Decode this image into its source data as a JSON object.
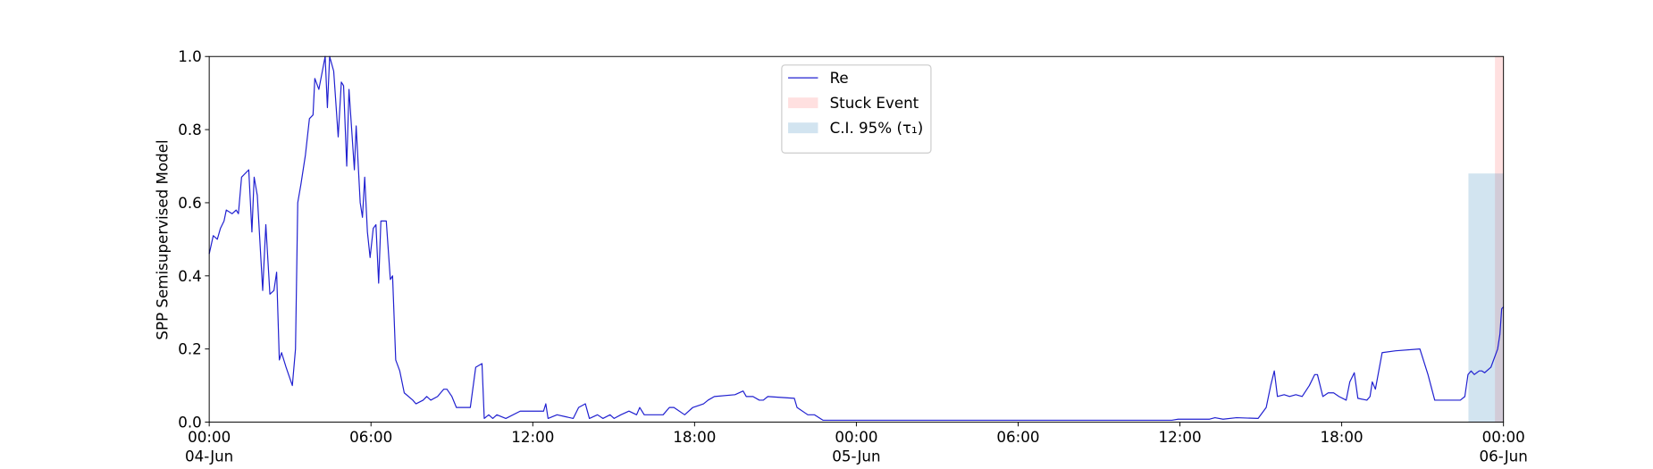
{
  "chart_data": {
    "type": "line",
    "ylabel": "SPP Semisupervised Model",
    "xlim": [
      "1900-06-04T00:00",
      "1900-06-06T00:00"
    ],
    "xticks": [
      {
        "value": "1900-06-04T00:00",
        "label": "00:00\n04-Jun\n1900"
      },
      {
        "value": "1900-06-04T06:00",
        "label": "06:00"
      },
      {
        "value": "1900-06-04T12:00",
        "label": "12:00"
      },
      {
        "value": "1900-06-04T18:00",
        "label": "18:00"
      },
      {
        "value": "1900-06-05T00:00",
        "label": "00:00\n05-Jun"
      },
      {
        "value": "1900-06-05T06:00",
        "label": "06:00"
      },
      {
        "value": "1900-06-05T12:00",
        "label": "12:00"
      },
      {
        "value": "1900-06-05T18:00",
        "label": "18:00"
      },
      {
        "value": "1900-06-06T00:00",
        "label": "00:00\n06-Jun"
      }
    ],
    "ylim": [
      0,
      1
    ],
    "yticks": [
      {
        "value": 0,
        "label": "0.0"
      },
      {
        "value": 0.2,
        "label": "0.2"
      },
      {
        "value": 0.4,
        "label": "0.4"
      },
      {
        "value": 0.6,
        "label": "0.6"
      },
      {
        "value": 0.8,
        "label": "0.8"
      },
      {
        "value": 1,
        "label": "1.0"
      }
    ],
    "legend": "upper center",
    "x": [
      "1900-06-04T00:00",
      "1900-06-04T00:09",
      "1900-06-04T00:18",
      "1900-06-04T00:25",
      "1900-06-04T00:33",
      "1900-06-04T00:38",
      "1900-06-04T00:51",
      "1900-06-04T01:00",
      "1900-06-04T01:05",
      "1900-06-04T01:12",
      "1900-06-04T01:28",
      "1900-06-04T01:35",
      "1900-06-04T01:40",
      "1900-06-04T01:47",
      "1900-06-04T01:59",
      "1900-06-04T02:06",
      "1900-06-04T02:15",
      "1900-06-04T02:24",
      "1900-06-04T02:30",
      "1900-06-04T02:36",
      "1900-06-04T02:41",
      "1900-06-04T02:51",
      "1900-06-04T03:05",
      "1900-06-04T03:12",
      "1900-06-04T03:17",
      "1900-06-04T03:24",
      "1900-06-04T03:34",
      "1900-06-04T03:43",
      "1900-06-04T03:51",
      "1900-06-04T03:55",
      "1900-06-04T04:04",
      "1900-06-04T04:18",
      "1900-06-04T04:23",
      "1900-06-04T04:28",
      "1900-06-04T04:37",
      "1900-06-04T04:47",
      "1900-06-04T04:54",
      "1900-06-04T04:59",
      "1900-06-04T05:06",
      "1900-06-04T05:11",
      "1900-06-04T05:23",
      "1900-06-04T05:27",
      "1900-06-04T05:36",
      "1900-06-04T05:41",
      "1900-06-04T05:46",
      "1900-06-04T05:52",
      "1900-06-04T05:58",
      "1900-06-04T06:05",
      "1900-06-04T06:11",
      "1900-06-04T06:17",
      "1900-06-04T06:22",
      "1900-06-04T06:34",
      "1900-06-04T06:43",
      "1900-06-04T06:48",
      "1900-06-04T06:55",
      "1900-06-04T07:04",
      "1900-06-04T07:14",
      "1900-06-04T07:33",
      "1900-06-04T07:40",
      "1900-06-04T07:56",
      "1900-06-04T08:04",
      "1900-06-04T08:13",
      "1900-06-04T08:28",
      "1900-06-04T08:42",
      "1900-06-04T08:49",
      "1900-06-04T09:00",
      "1900-06-04T09:10",
      "1900-06-04T09:41",
      "1900-06-04T09:53",
      "1900-06-04T10:07",
      "1900-06-04T10:12",
      "1900-06-04T10:22",
      "1900-06-04T10:31",
      "1900-06-04T10:40",
      "1900-06-04T11:00",
      "1900-06-04T11:32",
      "1900-06-04T12:24",
      "1900-06-04T12:29",
      "1900-06-04T12:34",
      "1900-06-04T12:54",
      "1900-06-04T13:12",
      "1900-06-04T13:30",
      "1900-06-04T13:42",
      "1900-06-04T13:57",
      "1900-06-04T14:06",
      "1900-06-04T14:24",
      "1900-06-04T14:36",
      "1900-06-04T14:52",
      "1900-06-04T15:01",
      "1900-06-04T15:16",
      "1900-06-04T15:34",
      "1900-06-04T15:51",
      "1900-06-04T15:58",
      "1900-06-04T16:08",
      "1900-06-04T16:50",
      "1900-06-04T17:04",
      "1900-06-04T17:14",
      "1900-06-04T17:38",
      "1900-06-04T17:56",
      "1900-06-04T18:20",
      "1900-06-04T18:30",
      "1900-06-04T18:44",
      "1900-06-04T19:30",
      "1900-06-04T19:48",
      "1900-06-04T19:55",
      "1900-06-04T20:10",
      "1900-06-04T20:24",
      "1900-06-04T20:33",
      "1900-06-04T20:43",
      "1900-06-04T21:42",
      "1900-06-04T21:48",
      "1900-06-04T22:12",
      "1900-06-04T22:27",
      "1900-06-04T22:46",
      "1900-06-05T11:42",
      "1900-06-05T11:56",
      "1900-06-05T13:06",
      "1900-06-05T13:18",
      "1900-06-05T13:36",
      "1900-06-05T14:06",
      "1900-06-05T14:54",
      "1900-06-05T15:12",
      "1900-06-05T15:22",
      "1900-06-05T15:30",
      "1900-06-05T15:37",
      "1900-06-05T15:52",
      "1900-06-05T16:04",
      "1900-06-05T16:18",
      "1900-06-05T16:32",
      "1900-06-05T16:48",
      "1900-06-05T17:00",
      "1900-06-05T17:06",
      "1900-06-05T17:18",
      "1900-06-05T17:30",
      "1900-06-05T17:42",
      "1900-06-05T17:54",
      "1900-06-05T18:10",
      "1900-06-05T18:18",
      "1900-06-05T18:28",
      "1900-06-05T18:36",
      "1900-06-05T18:56",
      "1900-06-05T19:03",
      "1900-06-05T19:08",
      "1900-06-05T19:15",
      "1900-06-05T19:30",
      "1900-06-05T20:00",
      "1900-06-05T20:54",
      "1900-06-05T21:12",
      "1900-06-05T21:27",
      "1900-06-05T22:24",
      "1900-06-05T22:34",
      "1900-06-05T22:41",
      "1900-06-05T22:48",
      "1900-06-05T22:55",
      "1900-06-05T23:06",
      "1900-06-05T23:12",
      "1900-06-05T23:18",
      "1900-06-05T23:32",
      "1900-06-05T23:47",
      "1900-06-05T23:52",
      "1900-06-05T23:56",
      "1900-06-06T00:00"
    ],
    "series": [
      {
        "name": "Re",
        "color": "#2020d0",
        "values": [
          0.46,
          0.51,
          0.5,
          0.53,
          0.55,
          0.58,
          0.57,
          0.58,
          0.57,
          0.67,
          0.69,
          0.52,
          0.67,
          0.62,
          0.36,
          0.54,
          0.35,
          0.36,
          0.41,
          0.17,
          0.19,
          0.15,
          0.1,
          0.2,
          0.6,
          0.65,
          0.73,
          0.83,
          0.84,
          0.94,
          0.91,
          1.0,
          0.86,
          1.0,
          0.96,
          0.78,
          0.93,
          0.92,
          0.7,
          0.91,
          0.69,
          0.81,
          0.6,
          0.56,
          0.67,
          0.52,
          0.45,
          0.53,
          0.54,
          0.38,
          0.55,
          0.55,
          0.39,
          0.4,
          0.17,
          0.14,
          0.08,
          0.06,
          0.05,
          0.06,
          0.07,
          0.06,
          0.07,
          0.09,
          0.09,
          0.07,
          0.04,
          0.04,
          0.15,
          0.16,
          0.01,
          0.02,
          0.01,
          0.02,
          0.01,
          0.03,
          0.03,
          0.05,
          0.01,
          0.02,
          0.015,
          0.01,
          0.04,
          0.05,
          0.01,
          0.02,
          0.01,
          0.02,
          0.01,
          0.02,
          0.03,
          0.02,
          0.04,
          0.02,
          0.02,
          0.04,
          0.04,
          0.02,
          0.04,
          0.05,
          0.06,
          0.07,
          0.075,
          0.085,
          0.07,
          0.07,
          0.06,
          0.06,
          0.07,
          0.065,
          0.04,
          0.02,
          0.02,
          0.005,
          0.005,
          0.008,
          0.008,
          0.012,
          0.008,
          0.012,
          0.01,
          0.04,
          0.1,
          0.14,
          0.07,
          0.075,
          0.07,
          0.075,
          0.07,
          0.1,
          0.13,
          0.13,
          0.07,
          0.08,
          0.08,
          0.07,
          0.06,
          0.11,
          0.135,
          0.065,
          0.06,
          0.07,
          0.11,
          0.09,
          0.19,
          0.195,
          0.2,
          0.13,
          0.06,
          0.06,
          0.07,
          0.13,
          0.14,
          0.13,
          0.14,
          0.14,
          0.135,
          0.15,
          0.2,
          0.24,
          0.31,
          0.315
        ]
      }
    ],
    "spans": [
      {
        "name": "Stuck Event",
        "color": "#ff0000",
        "x": [
          "1900-06-05T23:41",
          "1900-06-06T00:00"
        ]
      },
      {
        "name": "C.I. 95% (τ₁)",
        "color": "#1f77b4",
        "x": [
          "1900-06-05T22:42",
          "1900-06-06T00:00"
        ],
        "y": [
          0,
          0.68
        ]
      }
    ]
  }
}
